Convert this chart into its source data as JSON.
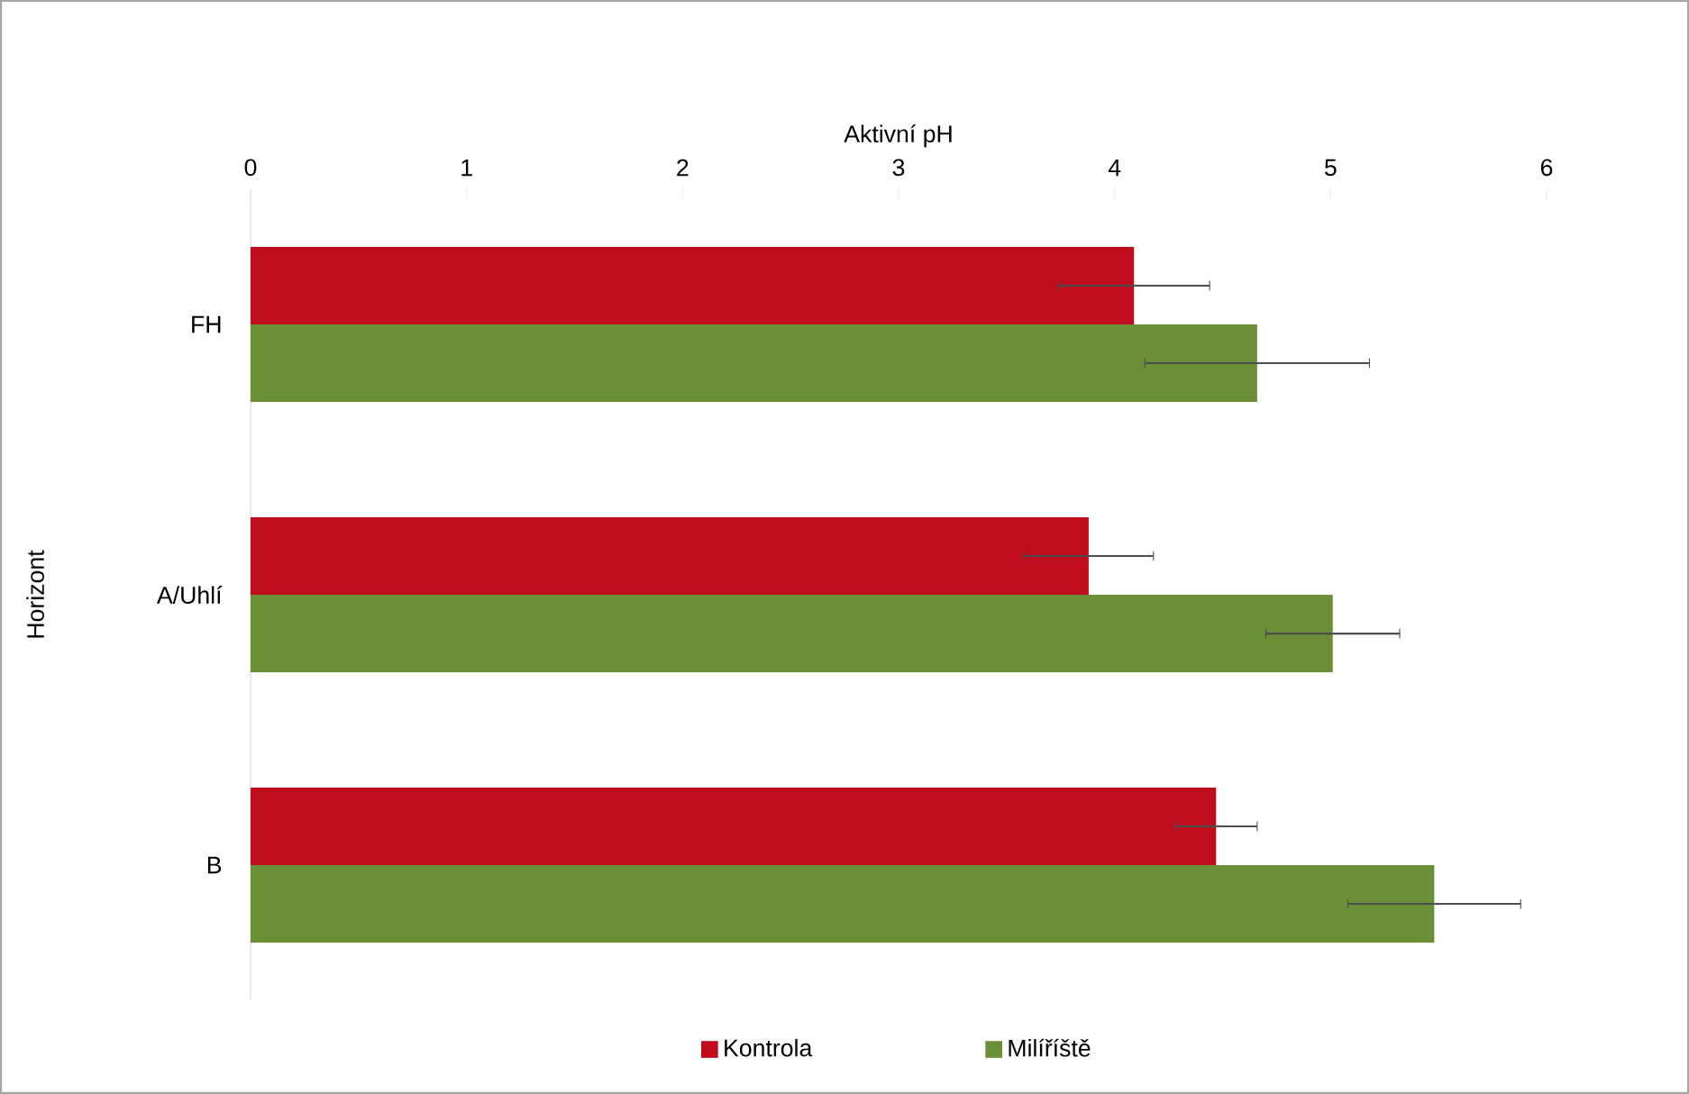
{
  "chart_data": {
    "type": "bar",
    "orientation": "horizontal",
    "xlabel": "Aktivní pH",
    "ylabel": "Horizont",
    "categories": [
      "FH",
      "A/Uhlí",
      "B"
    ],
    "xlim": [
      0,
      6
    ],
    "xticks": [
      0,
      1,
      2,
      3,
      4,
      5,
      6
    ],
    "legend": "bottom",
    "series": [
      {
        "name": "Kontrola",
        "color": "#c00d1e",
        "values": [
          4.09,
          3.88,
          4.47
        ],
        "errors": [
          0.35,
          0.3,
          0.19
        ]
      },
      {
        "name": "Milíříště",
        "color": "#6a8f37",
        "values": [
          4.66,
          5.01,
          5.48
        ],
        "errors": [
          0.52,
          0.31,
          0.4
        ]
      }
    ]
  }
}
